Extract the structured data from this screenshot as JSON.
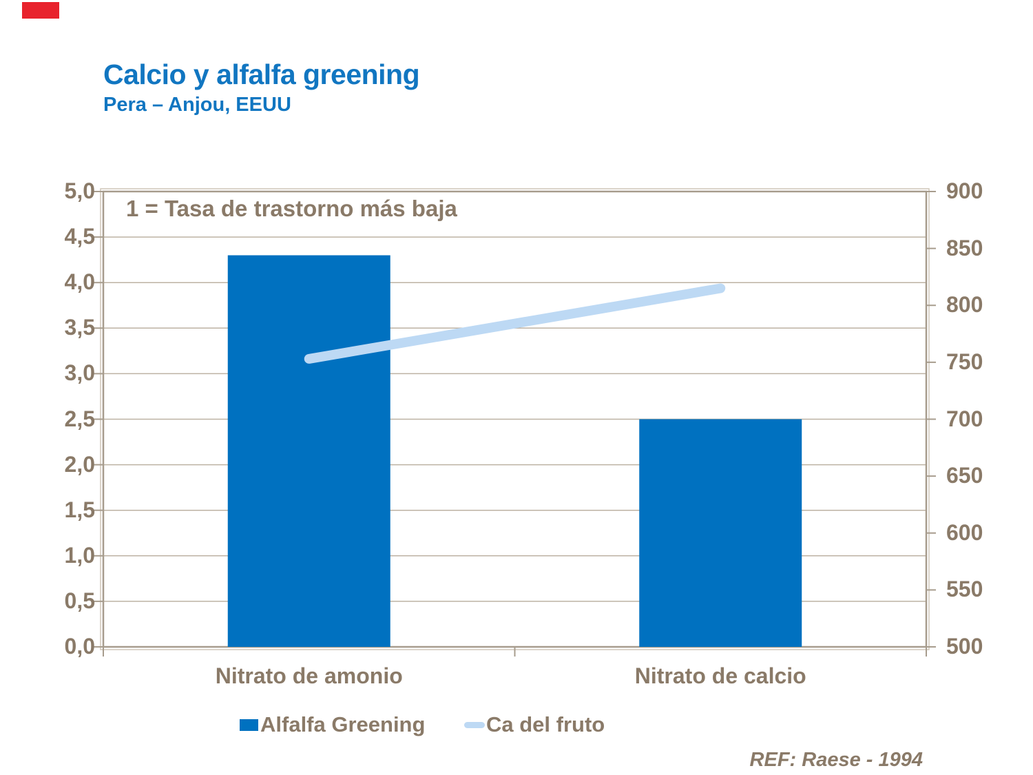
{
  "header": {
    "title": "Calcio y alfalfa greening",
    "subtitle": "Pera – Anjou, EEUU"
  },
  "footer": {
    "ref": "REF: Raese - 1994"
  },
  "legend": [
    {
      "label": "Alfalfa Greening",
      "swatch": "bar-swatch"
    },
    {
      "label": "Ca del fruto",
      "swatch": "line-swatch"
    }
  ],
  "colors": {
    "title_blue": "#1176c1",
    "bar_blue": "#0071c0",
    "line_blue": "#bdd9f4",
    "text_brown": "#8a7a68",
    "grid": "#bdb2a3",
    "axis": "#a79c8d",
    "axis_outer": "#cfc6b8",
    "brand_red": "#e8232d"
  },
  "chart_data": {
    "type": "bar",
    "title": "Calcio y alfalfa greening — Pera, Anjou, EEUU",
    "categories": [
      "Nitrato de amonio",
      "Nitrato de calcio"
    ],
    "series": [
      {
        "name": "Alfalfa Greening",
        "type": "bar",
        "axis": "left",
        "values": [
          4.3,
          2.5
        ],
        "color": "#0071c0"
      },
      {
        "name": "Ca del fruto",
        "type": "line",
        "axis": "right",
        "values": [
          753,
          815
        ],
        "color": "#bdd9f4"
      }
    ],
    "left_axis": {
      "min": 0,
      "max": 5,
      "step": 0.5,
      "tick_labels": [
        "0,0",
        "0,5",
        "1,0",
        "1,5",
        "2,0",
        "2,5",
        "3,0",
        "3,5",
        "4,0",
        "4,5",
        "5,0"
      ]
    },
    "right_axis": {
      "min": 500,
      "max": 900,
      "step": 50,
      "tick_labels": [
        "500",
        "550",
        "600",
        "650",
        "700",
        "750",
        "800",
        "850",
        "900"
      ]
    },
    "grid": "horizontal",
    "legend_position": "bottom",
    "annotation": "1 = Tasa de trastorno más baja"
  }
}
